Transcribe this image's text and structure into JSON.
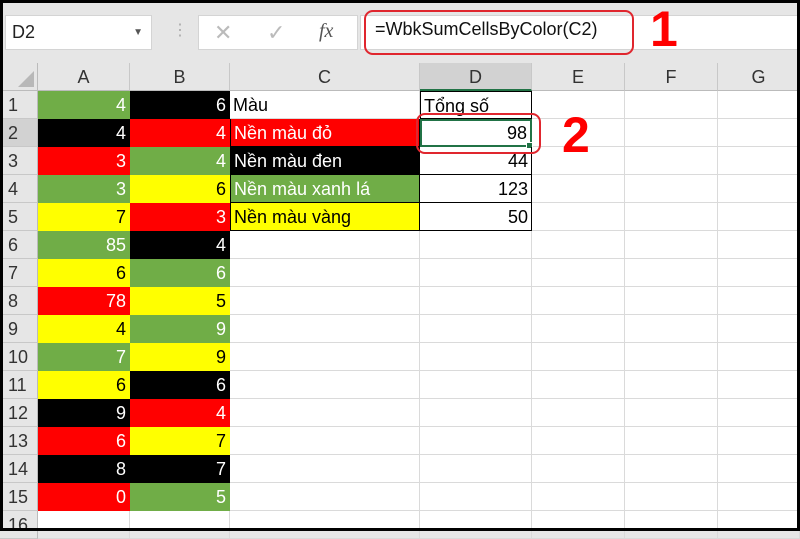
{
  "formula_bar": {
    "name_box": "D2",
    "cancel_icon": "✕",
    "enter_icon": "✓",
    "fx_label": "fx",
    "formula": "=WbkSumCellsByColor(C2)"
  },
  "annotations": {
    "step1": "1",
    "step2": "2",
    "color": "#ff0000"
  },
  "columns": [
    "A",
    "B",
    "C",
    "D",
    "E",
    "F",
    "G"
  ],
  "selected_cell": "D2",
  "colors": {
    "green": "#70ad47",
    "black": "#000000",
    "red": "#ff0000",
    "yellow": "#ffff00",
    "white": "#ffffff",
    "selection": "#217346"
  },
  "column_a": [
    {
      "v": "4",
      "bg": "green"
    },
    {
      "v": "4",
      "bg": "black"
    },
    {
      "v": "3",
      "bg": "red"
    },
    {
      "v": "3",
      "bg": "green"
    },
    {
      "v": "7",
      "bg": "yellow"
    },
    {
      "v": "85",
      "bg": "green"
    },
    {
      "v": "6",
      "bg": "yellow"
    },
    {
      "v": "78",
      "bg": "red"
    },
    {
      "v": "4",
      "bg": "yellow"
    },
    {
      "v": "7",
      "bg": "green"
    },
    {
      "v": "6",
      "bg": "yellow"
    },
    {
      "v": "9",
      "bg": "black"
    },
    {
      "v": "6",
      "bg": "red"
    },
    {
      "v": "8",
      "bg": "black"
    },
    {
      "v": "0",
      "bg": "red"
    }
  ],
  "column_b": [
    {
      "v": "6",
      "bg": "black"
    },
    {
      "v": "4",
      "bg": "red"
    },
    {
      "v": "4",
      "bg": "green"
    },
    {
      "v": "6",
      "bg": "yellow"
    },
    {
      "v": "3",
      "bg": "red"
    },
    {
      "v": "4",
      "bg": "black"
    },
    {
      "v": "6",
      "bg": "green"
    },
    {
      "v": "5",
      "bg": "yellow"
    },
    {
      "v": "9",
      "bg": "green"
    },
    {
      "v": "9",
      "bg": "yellow"
    },
    {
      "v": "6",
      "bg": "black"
    },
    {
      "v": "4",
      "bg": "red"
    },
    {
      "v": "7",
      "bg": "yellow"
    },
    {
      "v": "7",
      "bg": "black"
    },
    {
      "v": "5",
      "bg": "green"
    }
  ],
  "summary_table": {
    "header": {
      "label": "Màu",
      "total": "Tổng số"
    },
    "rows": [
      {
        "label": "Nền màu đỏ",
        "bg": "red",
        "total": "98"
      },
      {
        "label": "Nền màu đen",
        "bg": "black",
        "total": "44"
      },
      {
        "label": "Nền màu xanh lá",
        "bg": "green",
        "total": "123"
      },
      {
        "label": "Nền màu vàng",
        "bg": "yellow",
        "total": "50"
      }
    ]
  }
}
